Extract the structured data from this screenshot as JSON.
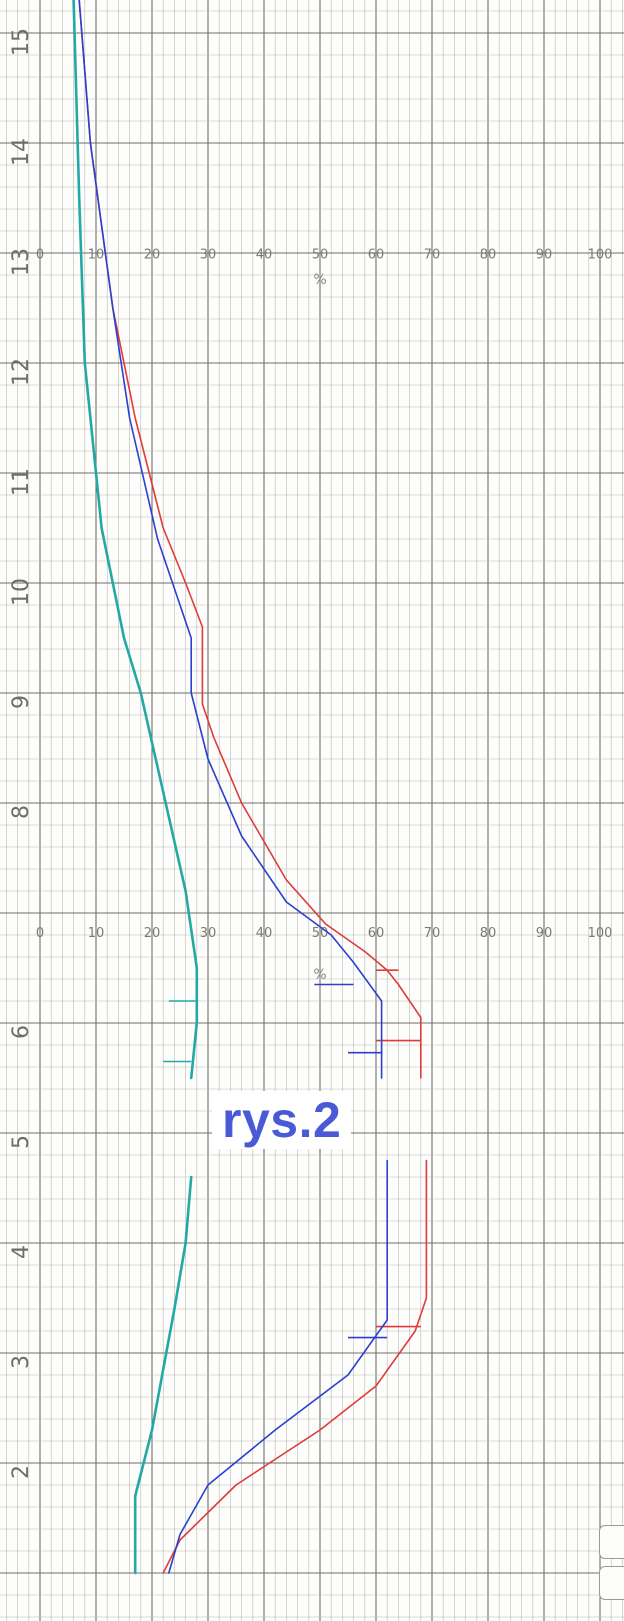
{
  "figure_label": "rys.2",
  "colors": {
    "red": "#e03a3a",
    "blue": "#2b3fd0",
    "cyan": "#22a9a6",
    "grid_major": "#6f6f6a",
    "grid_minor": "#b9b9b4",
    "label": "#4a5ad6"
  },
  "chart_data": {
    "type": "line",
    "orientation": "vertical-strip-chart",
    "title": "",
    "xlabel": "%",
    "ylabel": "",
    "xlim": [
      0,
      100
    ],
    "ylim": [
      1,
      15.3
    ],
    "grid": true,
    "xticks": [
      "0",
      "10",
      "20",
      "30",
      "40",
      "50",
      "60",
      "70",
      "80",
      "90",
      "100"
    ],
    "yticks": [
      "2",
      "3",
      "4",
      "5",
      "6",
      "8",
      "9",
      "10",
      "11",
      "12",
      "13",
      "14",
      "15"
    ],
    "x_scale_rows": [
      {
        "at_y": 12.95,
        "unit": "%",
        "unit_at_y": 12.72
      },
      {
        "at_y": 6.78,
        "unit": "%",
        "unit_at_y": 6.4
      }
    ],
    "series": [
      {
        "color": "red",
        "segments": [
          [
            [
              7,
              15.3
            ],
            [
              9,
              14
            ],
            [
              13,
              12.5
            ],
            [
              17,
              11.5
            ],
            [
              22,
              10.5
            ],
            [
              26,
              10
            ],
            [
              29,
              9.6
            ],
            [
              29,
              8.9
            ],
            [
              31,
              8.6
            ],
            [
              36,
              8
            ],
            [
              44,
              7.3
            ],
            [
              51,
              6.9
            ],
            [
              58,
              6.65
            ],
            [
              62,
              6.48
            ],
            [
              64,
              6.35
            ],
            [
              68,
              6.05
            ],
            [
              68,
              5.5
            ]
          ],
          [
            [
              69,
              4.75
            ],
            [
              69,
              3.5
            ],
            [
              67,
              3.2
            ],
            [
              60,
              2.7
            ],
            [
              50,
              2.3
            ],
            [
              35,
              1.8
            ],
            [
              25,
              1.3
            ],
            [
              22,
              1.0
            ]
          ]
        ],
        "markers": [
          [
            [
              60,
              6.48
            ],
            [
              64,
              6.48
            ]
          ],
          [
            [
              60,
              5.84
            ],
            [
              68,
              5.84
            ]
          ],
          [
            [
              60,
              3.24
            ],
            [
              68,
              3.24
            ]
          ]
        ]
      },
      {
        "color": "blue",
        "segments": [
          [
            [
              7,
              15.3
            ],
            [
              9,
              14
            ],
            [
              13,
              12.5
            ],
            [
              16,
              11.5
            ],
            [
              21,
              10.4
            ],
            [
              27,
              9.5
            ],
            [
              27,
              9.0
            ],
            [
              30,
              8.4
            ],
            [
              36,
              7.7
            ],
            [
              44,
              7.1
            ],
            [
              52,
              6.8
            ],
            [
              56,
              6.55
            ],
            [
              61,
              6.2
            ],
            [
              61,
              5.5
            ]
          ],
          [
            [
              62,
              4.75
            ],
            [
              62,
              3.6
            ],
            [
              62,
              3.3
            ],
            [
              55,
              2.8
            ],
            [
              42,
              2.3
            ],
            [
              30,
              1.8
            ],
            [
              25,
              1.35
            ],
            [
              23,
              1.0
            ]
          ]
        ],
        "markers": [
          [
            [
              49,
              6.35
            ],
            [
              56,
              6.35
            ]
          ],
          [
            [
              55,
              5.73
            ],
            [
              61,
              5.73
            ]
          ],
          [
            [
              55,
              3.14
            ],
            [
              62,
              3.14
            ]
          ]
        ]
      },
      {
        "color": "cyan",
        "segments": [
          [
            [
              6,
              15.3
            ],
            [
              7,
              13.5
            ],
            [
              8,
              12
            ],
            [
              11,
              10.5
            ],
            [
              15,
              9.5
            ],
            [
              18,
              9
            ],
            [
              22,
              8.1
            ],
            [
              26,
              7.2
            ],
            [
              28,
              6.5
            ],
            [
              28,
              6.0
            ],
            [
              27,
              5.5
            ]
          ],
          [
            [
              27,
              4.6
            ],
            [
              26,
              4.0
            ],
            [
              24,
              3.4
            ],
            [
              20,
              2.3
            ],
            [
              17,
              1.7
            ],
            [
              17,
              1.0
            ]
          ]
        ],
        "markers": [
          [
            [
              23,
              6.2
            ],
            [
              28,
              6.2
            ]
          ],
          [
            [
              22,
              5.65
            ],
            [
              27,
              5.65
            ]
          ]
        ]
      }
    ]
  }
}
